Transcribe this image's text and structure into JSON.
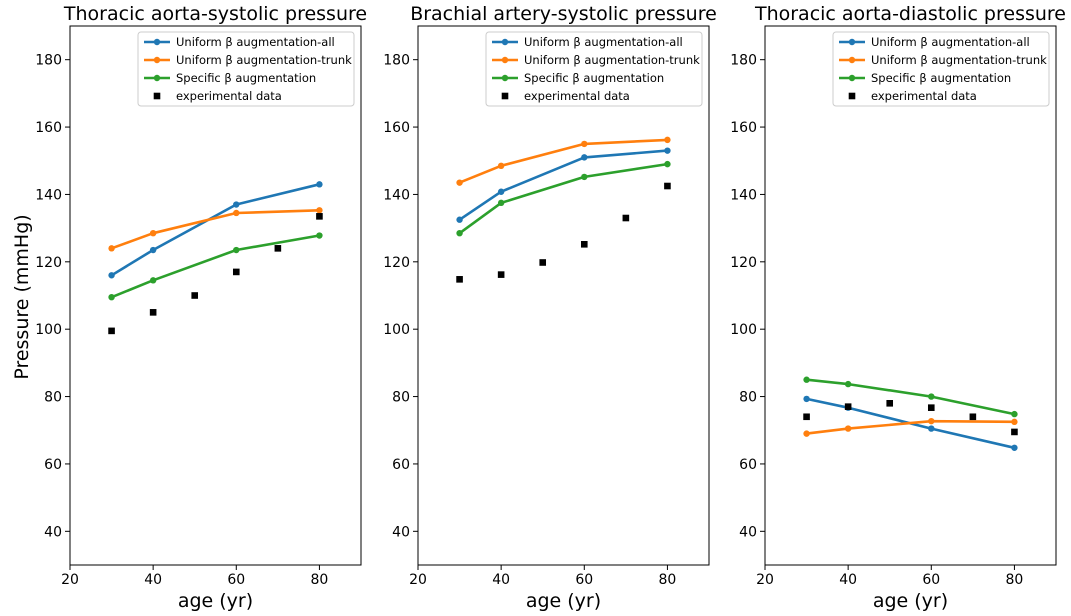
{
  "figure": {
    "ylabel": "Pressure (mmHg)"
  },
  "colors": {
    "blue": "#1f77b4",
    "orange": "#ff7f0e",
    "green": "#2ca02c",
    "black": "#000000"
  },
  "legend": {
    "placement": "upper right",
    "entries": [
      {
        "label": "Uniform β augmentation-all",
        "color": "#1f77b4",
        "marker": "line-dot"
      },
      {
        "label": "Uniform β augmentation-trunk",
        "color": "#ff7f0e",
        "marker": "line-dot"
      },
      {
        "label": "Specific β augmentation",
        "color": "#2ca02c",
        "marker": "line-dot"
      },
      {
        "label": "experimental data",
        "color": "#000000",
        "marker": "square"
      }
    ]
  },
  "chart_data": [
    {
      "type": "line",
      "title": "Thoracic aorta-systolic pressure",
      "xlabel": "age (yr)",
      "ylabel": "Pressure (mmHg)",
      "xlim": [
        20,
        90
      ],
      "ylim": [
        30,
        190
      ],
      "xticks": [
        20,
        40,
        60,
        80
      ],
      "yticks": [
        40,
        60,
        80,
        100,
        120,
        140,
        160,
        180
      ],
      "grid": false,
      "x": [
        30,
        40,
        60,
        80
      ],
      "series": [
        {
          "name": "Uniform β augmentation-all",
          "color": "#1f77b4",
          "values": [
            116,
            123.5,
            137,
            143
          ]
        },
        {
          "name": "Uniform β augmentation-trunk",
          "color": "#ff7f0e",
          "values": [
            124,
            128.5,
            134.5,
            135.3
          ]
        },
        {
          "name": "Specific β augmentation",
          "color": "#2ca02c",
          "values": [
            109.5,
            114.5,
            123.5,
            127.8
          ]
        }
      ],
      "experimental": {
        "name": "experimental data",
        "x": [
          30,
          40,
          50,
          60,
          70,
          80
        ],
        "y": [
          99.5,
          105,
          110,
          117,
          124,
          133.5
        ]
      }
    },
    {
      "type": "line",
      "title": "Brachial artery-systolic pressure",
      "xlabel": "age (yr)",
      "ylabel": "",
      "xlim": [
        20,
        90
      ],
      "ylim": [
        30,
        190
      ],
      "xticks": [
        20,
        40,
        60,
        80
      ],
      "yticks": [
        40,
        60,
        80,
        100,
        120,
        140,
        160,
        180
      ],
      "grid": false,
      "x": [
        30,
        40,
        60,
        80
      ],
      "series": [
        {
          "name": "Uniform β augmentation-all",
          "color": "#1f77b4",
          "values": [
            132.5,
            140.8,
            151,
            153
          ]
        },
        {
          "name": "Uniform β augmentation-trunk",
          "color": "#ff7f0e",
          "values": [
            143.5,
            148.5,
            155,
            156.2
          ]
        },
        {
          "name": "Specific β augmentation",
          "color": "#2ca02c",
          "values": [
            128.5,
            137.5,
            145.2,
            149
          ]
        }
      ],
      "experimental": {
        "name": "experimental data",
        "x": [
          30,
          40,
          50,
          60,
          70,
          80
        ],
        "y": [
          114.8,
          116.2,
          119.8,
          125.2,
          133,
          142.5
        ]
      }
    },
    {
      "type": "line",
      "title": "Thoracic aorta-diastolic pressure",
      "xlabel": "age (yr)",
      "ylabel": "",
      "xlim": [
        20,
        90
      ],
      "ylim": [
        30,
        190
      ],
      "xticks": [
        20,
        40,
        60,
        80
      ],
      "yticks": [
        40,
        60,
        80,
        100,
        120,
        140,
        160,
        180
      ],
      "grid": false,
      "x": [
        30,
        40,
        60,
        80
      ],
      "series": [
        {
          "name": "Uniform β augmentation-all",
          "color": "#1f77b4",
          "values": [
            79.3,
            76.7,
            70.5,
            64.8
          ]
        },
        {
          "name": "Uniform β augmentation-trunk",
          "color": "#ff7f0e",
          "values": [
            69,
            70.5,
            72.7,
            72.5
          ]
        },
        {
          "name": "Specific β augmentation",
          "color": "#2ca02c",
          "values": [
            85,
            83.7,
            80,
            74.8
          ]
        }
      ],
      "experimental": {
        "name": "experimental data",
        "x": [
          30,
          40,
          50,
          60,
          70,
          80
        ],
        "y": [
          74,
          77,
          78,
          76.7,
          74,
          69.5
        ]
      }
    }
  ]
}
